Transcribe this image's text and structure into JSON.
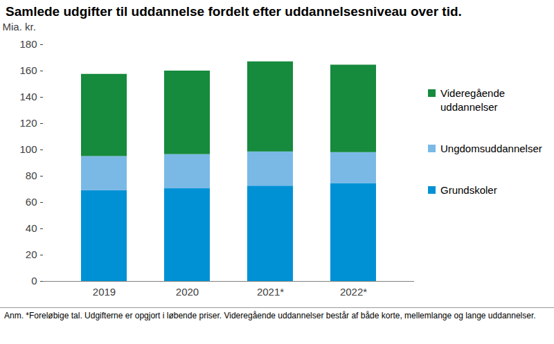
{
  "chart_data": {
    "type": "bar",
    "stacked": true,
    "title": "Samlede udgifter til uddannelse fordelt efter uddannelsesniveau over tid.",
    "y_label": "Mia. kr.",
    "caption": "Anm. *Foreløbige tal. Udgifterne er opgjort i løbende priser. Videregående uddannelser består af både korte, mellemlange og lange uddannelser.",
    "categories": [
      "2019",
      "2020",
      "2021*",
      "2022*"
    ],
    "series": [
      {
        "name": "Grundskoler",
        "color": "#0091d5",
        "values": [
          69,
          70.5,
          72.5,
          74.5
        ]
      },
      {
        "name": "Ungdomsuddannelser",
        "color": "#7ab9e6",
        "values": [
          26,
          26,
          26,
          23.5
        ]
      },
      {
        "name": "Videregående uddannelser",
        "color": "#168a3d",
        "values": [
          62.5,
          63.5,
          68.5,
          66.5
        ]
      }
    ],
    "ylim": [
      0,
      180
    ],
    "yticks": [
      0,
      20,
      40,
      60,
      80,
      100,
      120,
      140,
      160,
      180
    ],
    "grid": false,
    "legend": "right"
  }
}
